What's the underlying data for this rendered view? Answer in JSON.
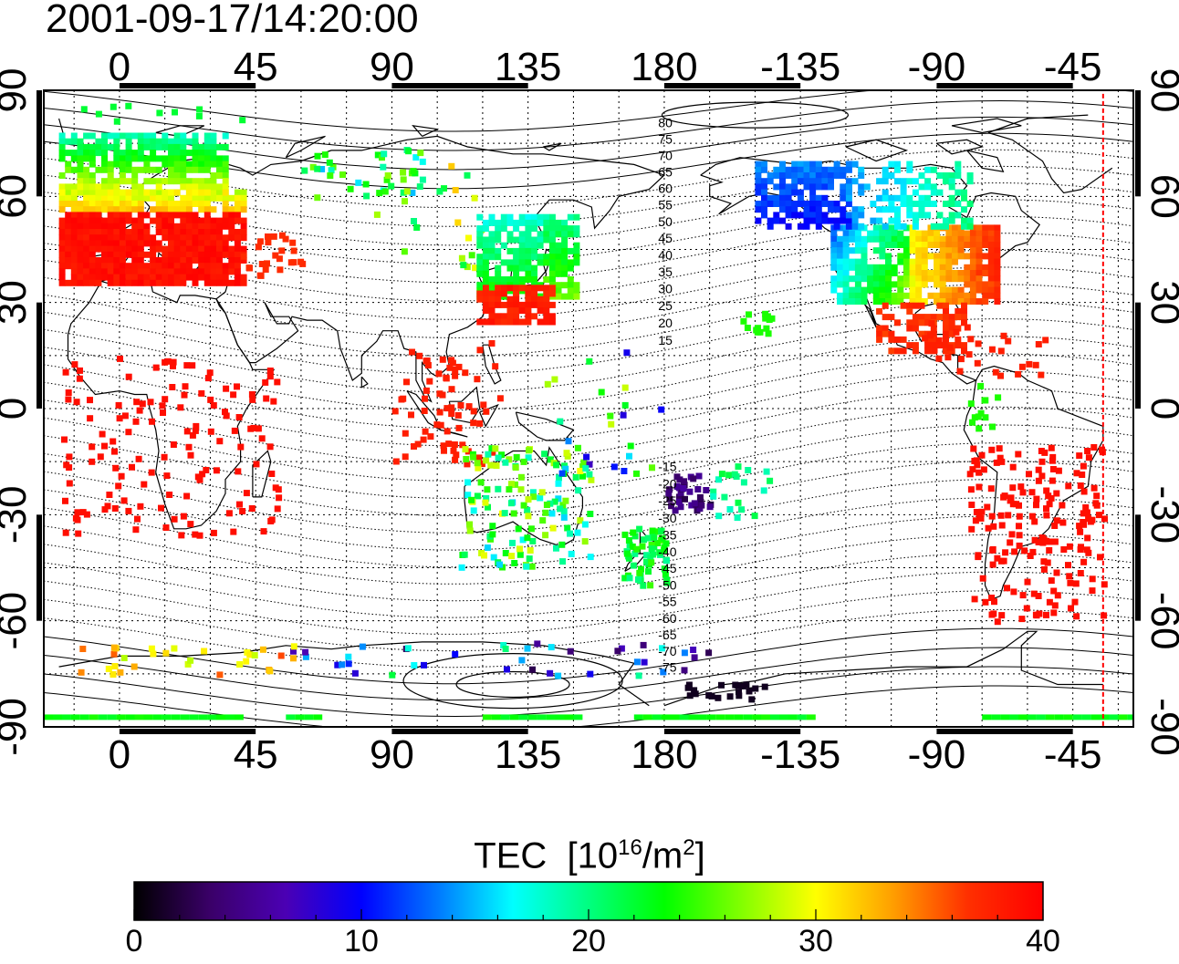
{
  "title": "2001-09-17/14:20:00",
  "map": {
    "projection": "equirectangular",
    "center_longitude": 180,
    "longitude_range": [
      -25,
      335
    ],
    "latitude_range": [
      -90,
      90
    ],
    "longitude_tick_labels": [
      "0",
      "45",
      "90",
      "135",
      "180",
      "-135",
      "-90",
      "-45"
    ],
    "latitude_tick_labels": [
      "90",
      "60",
      "30",
      "0",
      "-30",
      "-60",
      "-90"
    ],
    "grid": "dotted, 15 degree spacing",
    "terminator_longitude": -35,
    "contour_labels_north": [
      "80",
      "75",
      "70",
      "65",
      "60",
      "55",
      "50",
      "45",
      "40",
      "35",
      "30",
      "25",
      "20",
      "15"
    ],
    "contour_labels_south": [
      "-15",
      "-20",
      "-25",
      "-30",
      "-35",
      "-40",
      "-45",
      "-50",
      "-55",
      "-60",
      "-65",
      "-70",
      "-75"
    ]
  },
  "colorbar": {
    "title": "TEC",
    "unit_prefix": "[10",
    "unit_exp": "16",
    "unit_mid": "/m",
    "unit_sq": "2",
    "unit_suffix": "]",
    "min": 0,
    "max": 40,
    "tick_labels": [
      "0",
      "10",
      "20",
      "30",
      "40"
    ],
    "colormap": [
      "#000000",
      "#3a0068",
      "#4b00b4",
      "#0000ff",
      "#0078ff",
      "#00ffff",
      "#00ff80",
      "#00ff00",
      "#80ff00",
      "#ffff00",
      "#ffa000",
      "#ff3000",
      "#ff0000"
    ]
  },
  "tec_regions": [
    {
      "name": "europe",
      "tec": 38
    },
    {
      "name": "scandinavia",
      "tec": 26
    },
    {
      "name": "east-asia",
      "tec": 22
    },
    {
      "name": "north-america-east",
      "tec": 34
    },
    {
      "name": "north-america-west",
      "tec": 14
    },
    {
      "name": "alaska",
      "tec": 10
    },
    {
      "name": "south-america",
      "tec": 39
    },
    {
      "name": "africa",
      "tec": 39
    },
    {
      "name": "australia",
      "tec": 20
    },
    {
      "name": "new-zealand",
      "tec": 21
    },
    {
      "name": "antarctica",
      "tec": 22
    }
  ]
}
